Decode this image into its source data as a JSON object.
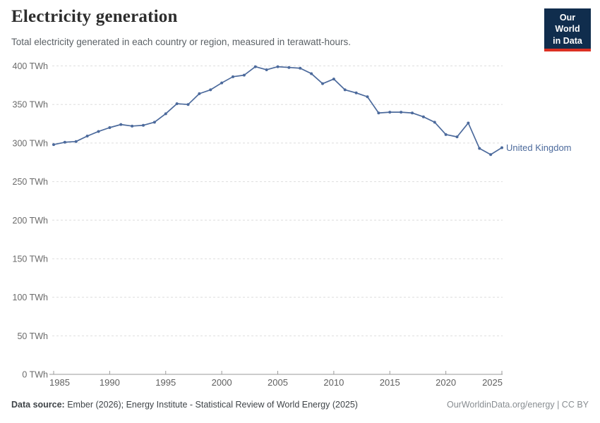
{
  "header": {
    "title": "Electricity generation",
    "subtitle": "Total electricity generated in each country or region, measured in terawatt-hours.",
    "logo": {
      "line1": "Our World",
      "line2": "in Data",
      "bg_color": "#102d4d",
      "accent_color": "#dc3022"
    }
  },
  "chart_data": {
    "type": "line",
    "title": "Electricity generation",
    "unit": "TWh",
    "x": [
      1985,
      1986,
      1987,
      1988,
      1989,
      1990,
      1991,
      1992,
      1993,
      1994,
      1995,
      1996,
      1997,
      1998,
      1999,
      2000,
      2001,
      2002,
      2003,
      2004,
      2005,
      2006,
      2007,
      2008,
      2009,
      2010,
      2011,
      2012,
      2013,
      2014,
      2015,
      2016,
      2017,
      2018,
      2019,
      2020,
      2021,
      2022,
      2023,
      2024,
      2025
    ],
    "series": [
      {
        "name": "United Kingdom",
        "color": "#4c6a9c",
        "values": [
          298,
          301,
          302,
          309,
          315,
          320,
          324,
          322,
          323,
          327,
          338,
          351,
          350,
          364,
          369,
          378,
          386,
          388,
          399,
          395,
          399,
          398,
          397,
          390,
          377,
          383,
          369,
          365,
          360,
          339,
          340,
          340,
          339,
          334,
          327,
          311,
          308,
          326,
          293,
          285,
          294
        ]
      }
    ],
    "ylim": [
      0,
      400
    ],
    "ytick_interval": 50,
    "ytick_suffix": " TWh",
    "xticks": [
      1985,
      1990,
      1995,
      2000,
      2005,
      2010,
      2015,
      2020,
      2025
    ],
    "legend_position": "end-of-line-label",
    "grid": "horizontal-dashed",
    "grid_color": "#dedede",
    "axis_color": "#9a9a9a",
    "tick_label_color": "#6b6b6b"
  },
  "footer": {
    "source_label": "Data source:",
    "source_text": " Ember (2026); Energy Institute - Statistical Review of World Energy (2025)",
    "right_text": "OurWorldinData.org/energy | CC BY"
  }
}
